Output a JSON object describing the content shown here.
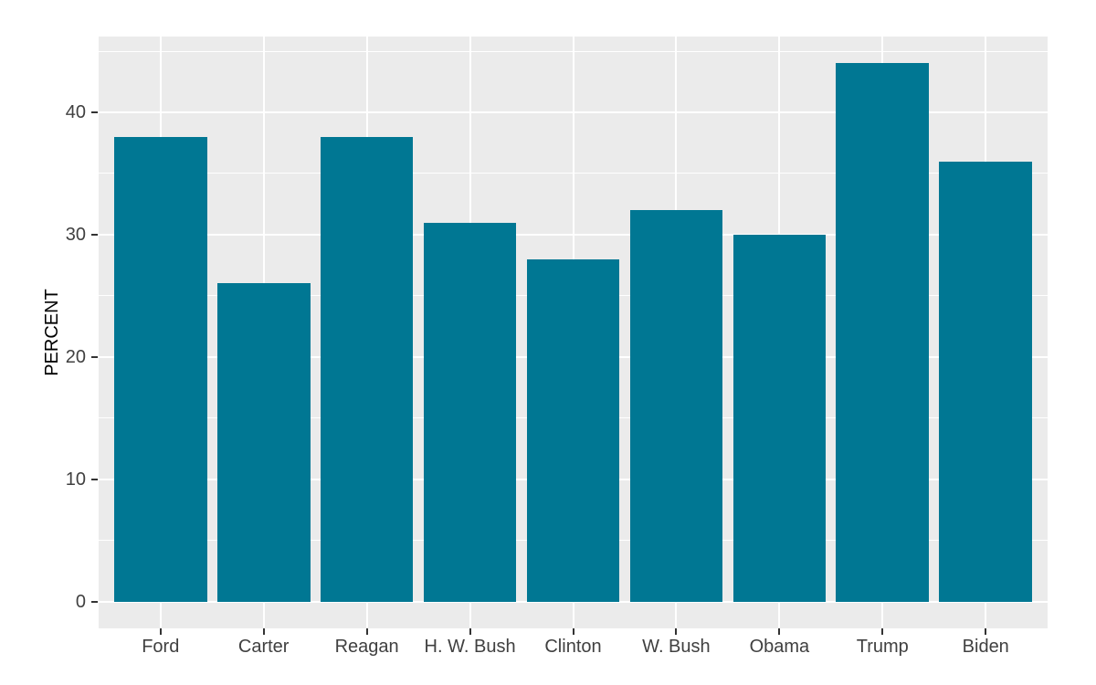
{
  "chart_data": {
    "type": "bar",
    "categories": [
      "Ford",
      "Carter",
      "Reagan",
      "H. W. Bush",
      "Clinton",
      "W. Bush",
      "Obama",
      "Trump",
      "Biden"
    ],
    "values": [
      38,
      26,
      38,
      31,
      28,
      32,
      30,
      44,
      36
    ],
    "title": "",
    "xlabel": "",
    "ylabel": "PERCENT",
    "ylim": [
      0,
      44
    ],
    "y_display_range": [
      -2.2,
      46.2
    ],
    "y_ticks": [
      0,
      10,
      20,
      30,
      40
    ],
    "y_minor_ticks": [
      5,
      15,
      25,
      35,
      45
    ],
    "grid": "on",
    "legend": "none",
    "bar_width_fraction": 0.9,
    "colors": {
      "bar_fill": "#007793",
      "panel_bg": "#EBEBEB",
      "grid_major": "#FFFFFF",
      "grid_minor": "#FFFFFF",
      "tick_mark": "#333333",
      "tick_label": "#404040",
      "axis_title": "#000000",
      "outer_bg": "#FFFFFF"
    }
  }
}
